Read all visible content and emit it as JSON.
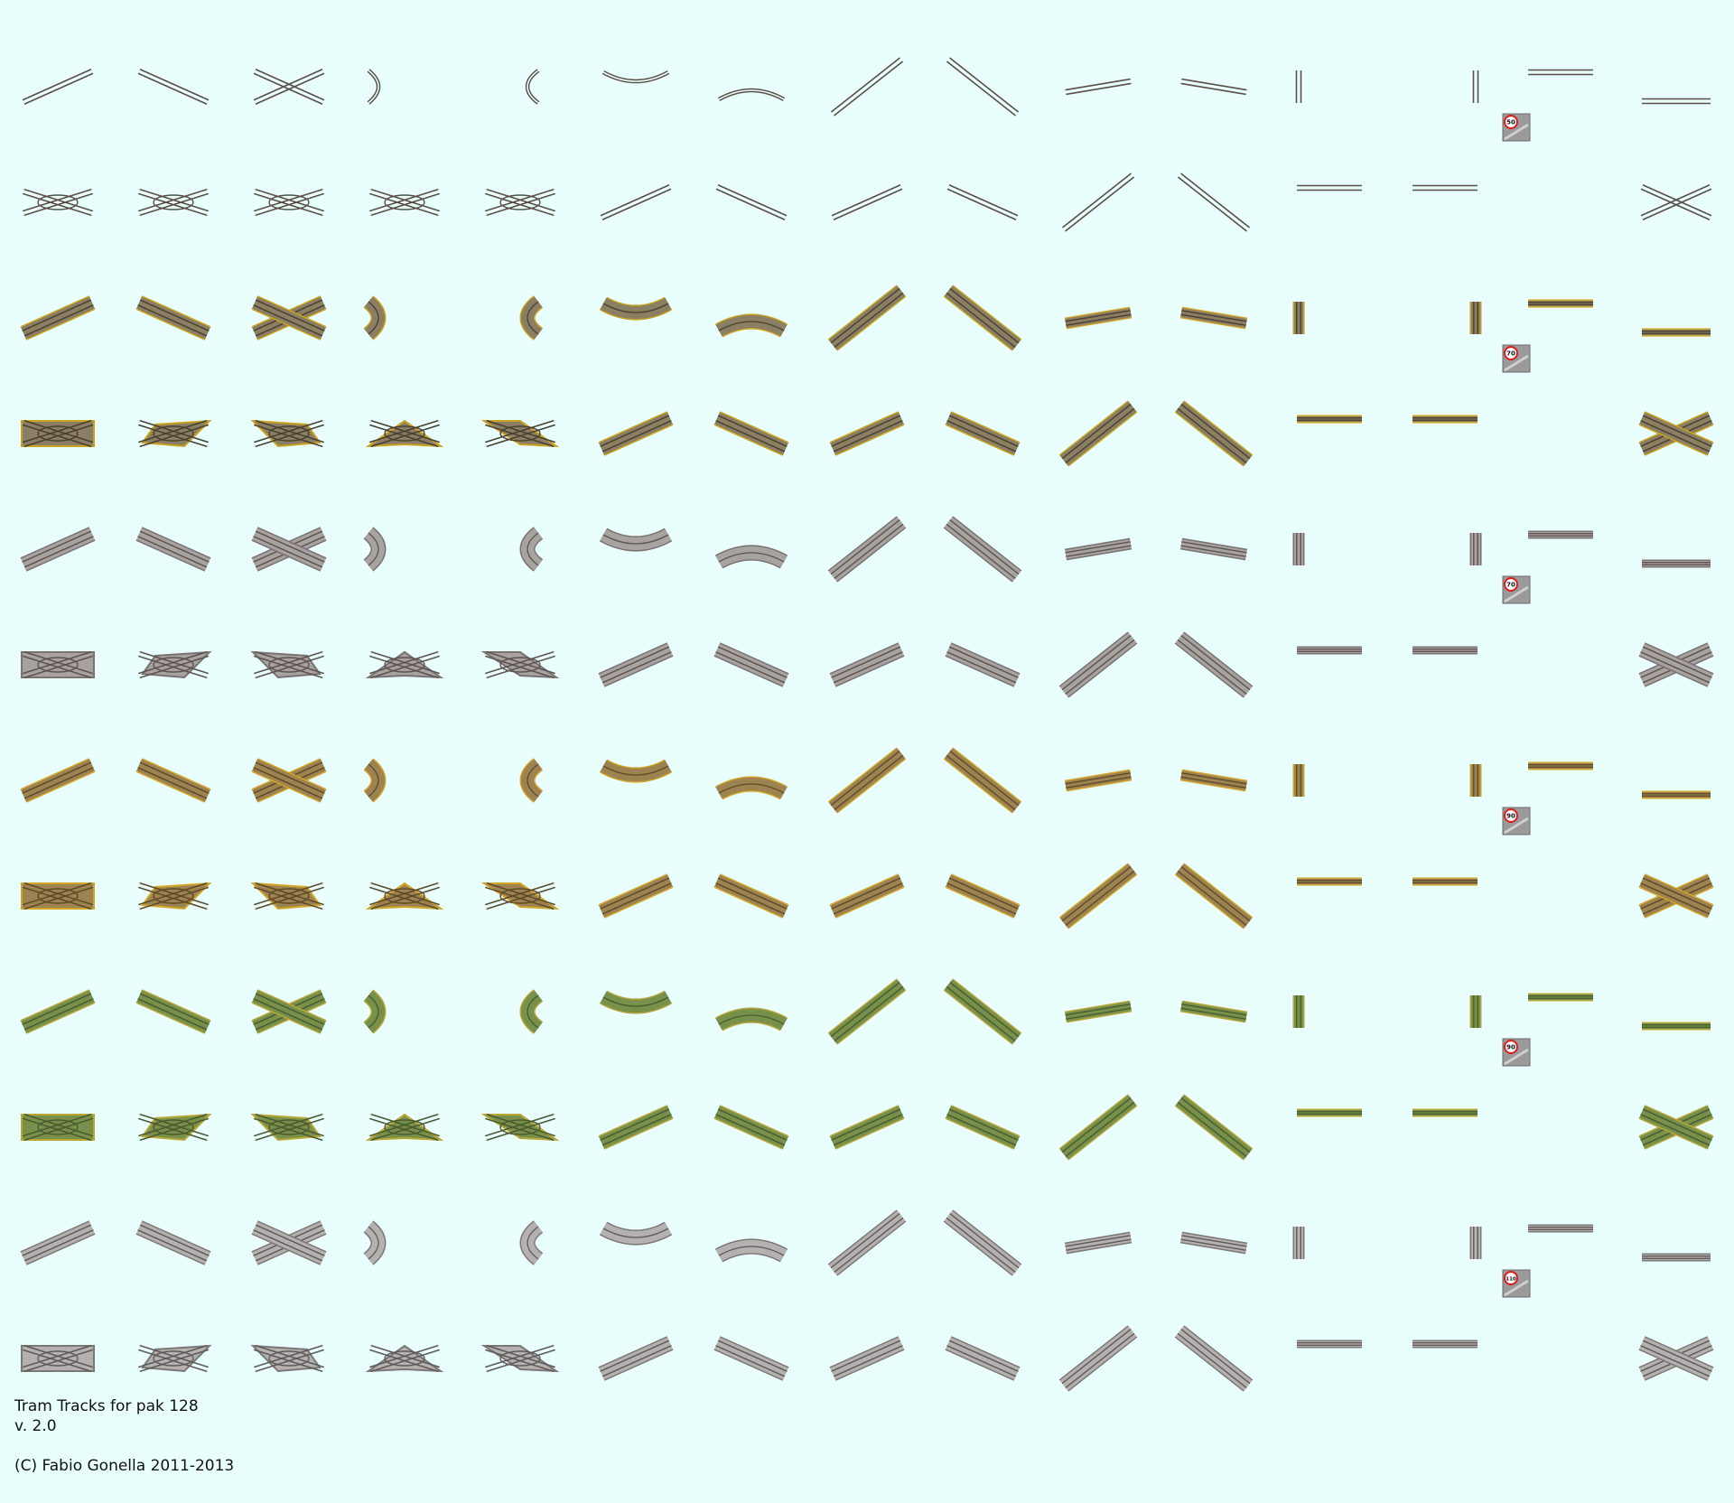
{
  "sheet": {
    "background": "#E8FFFE",
    "columns": 15,
    "rows": 12,
    "tile_kinds": [
      "straight-ne",
      "straight-nw",
      "cross",
      "curve-left",
      "empty",
      "curve-right",
      "arc-top",
      "arc-bottom",
      "diagonal-up",
      "diagonal-down",
      "slope-ne",
      "slope-nw",
      "ramp-left",
      "ramp-right",
      "flat-end",
      "flat-bottom"
    ],
    "bands": [
      {
        "name": "thin-rails",
        "fill": "#B9B2AB",
        "edge": "#6E655E",
        "rail": "#5A4E47"
      },
      {
        "name": "asphalt",
        "fill": "#8A7E63",
        "edge": "#C9A21F",
        "rail": "#4A4032"
      },
      {
        "name": "gravel",
        "fill": "#A8A2A0",
        "edge": "#7A7270",
        "rail": "#5C5450"
      },
      {
        "name": "ochre",
        "fill": "#9D8350",
        "edge": "#D1A52A",
        "rail": "#5F4A2A"
      },
      {
        "name": "grass",
        "fill": "#77914A",
        "edge": "#B9A538",
        "rail": "#4C5A30"
      },
      {
        "name": "concrete",
        "fill": "#B5B1B1",
        "edge": "#7C7777",
        "rail": "#5F5A5A"
      }
    ],
    "speed_signs": [
      "50",
      "70",
      "70",
      "90",
      "90",
      "110"
    ],
    "sign_color": "#E31B1B"
  },
  "credits": {
    "title": "Tram Tracks for pak 128",
    "version": "v. 2.0",
    "copyright": "(C) Fabio Gonella 2011-2013"
  }
}
